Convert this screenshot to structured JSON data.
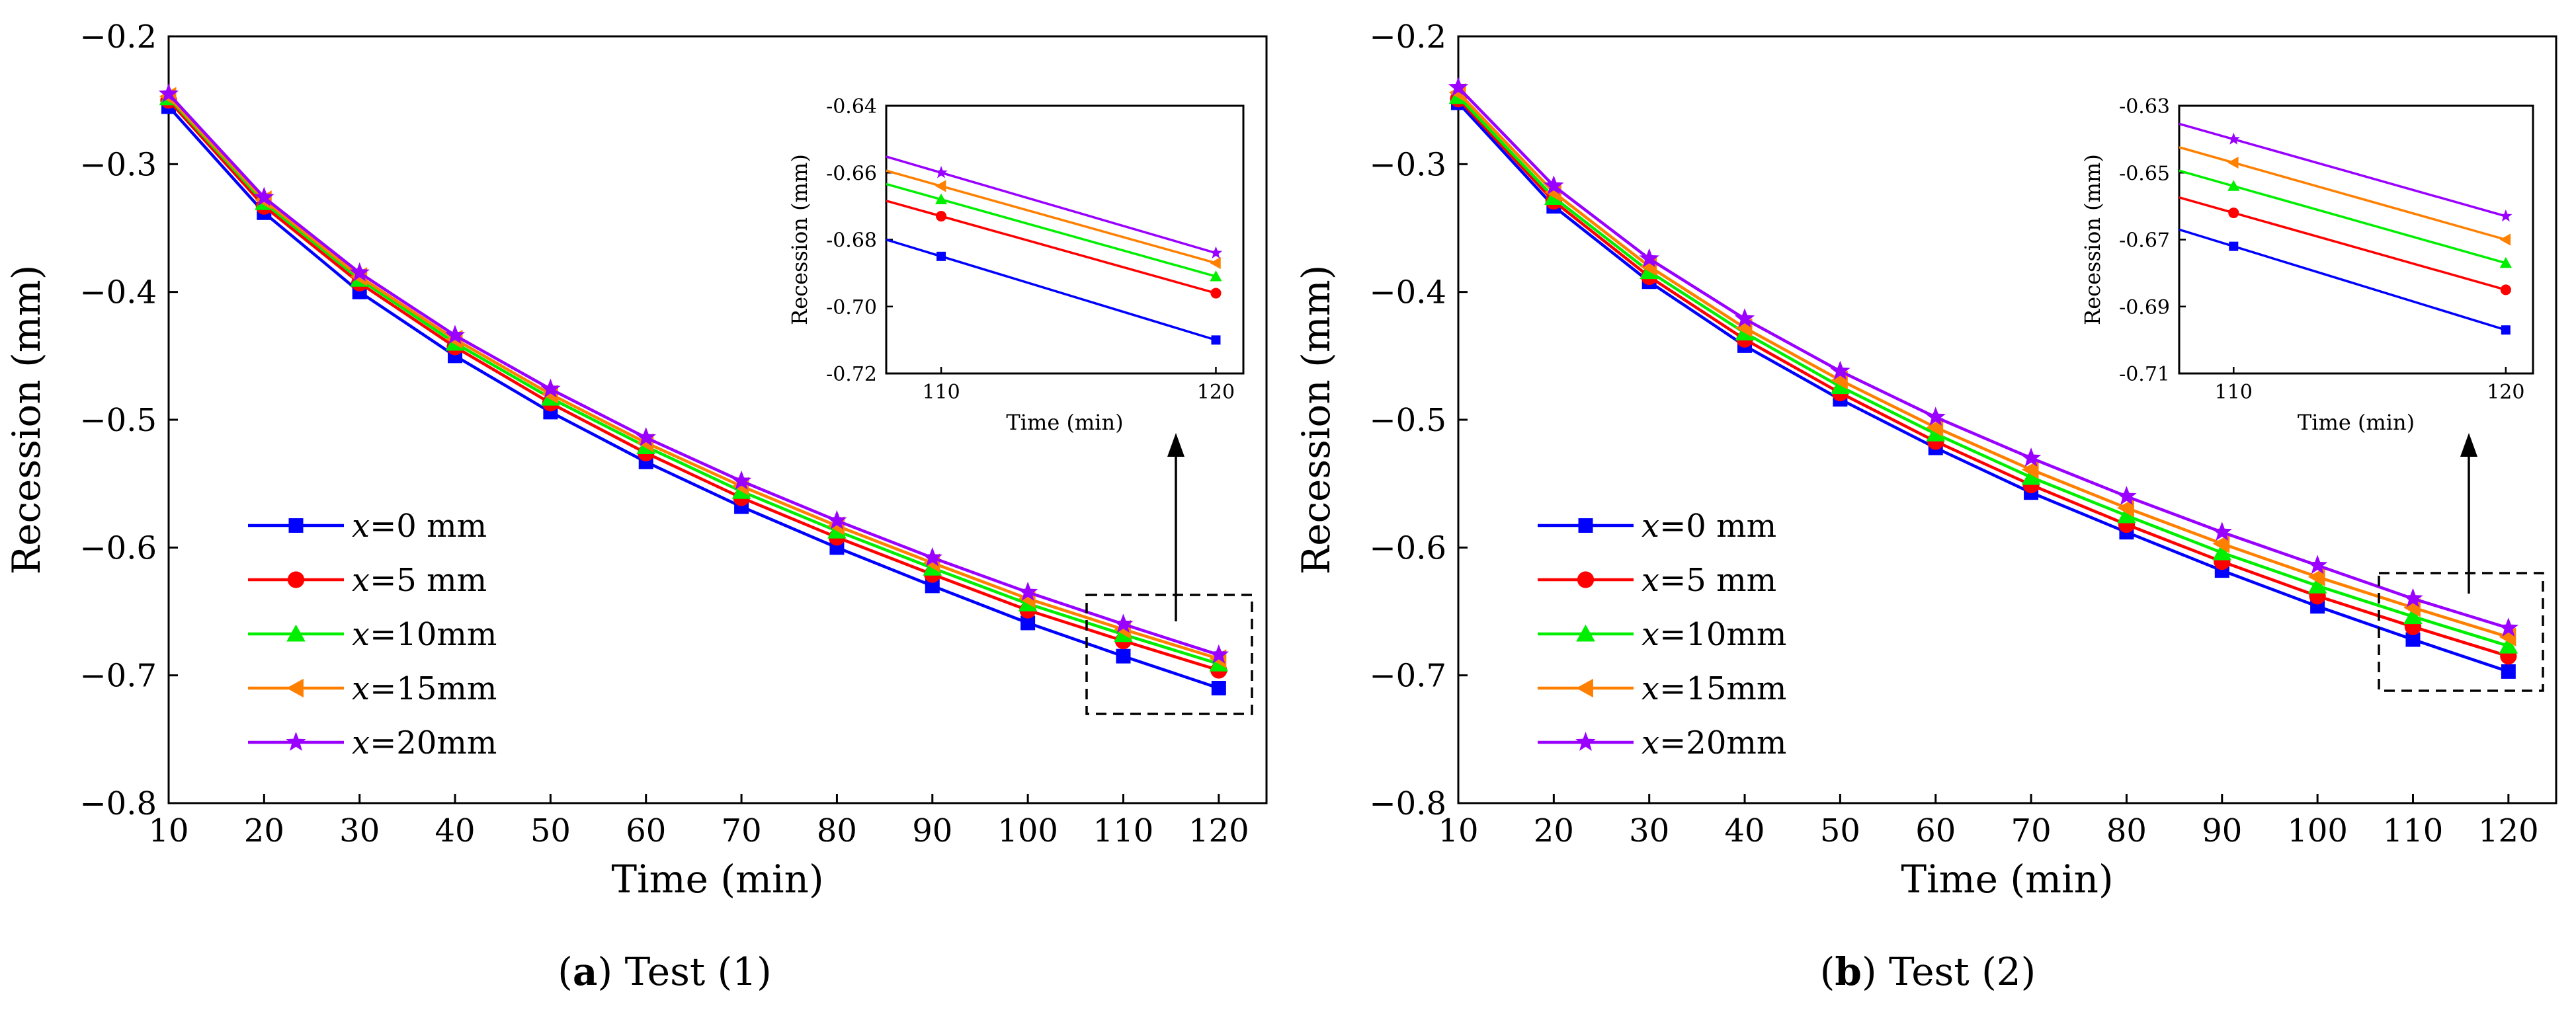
{
  "chart_data": [
    {
      "type": "line",
      "panel": "a",
      "caption_label": "a",
      "caption_text": "Test (1)",
      "title": "",
      "xlabel": "Time (min)",
      "ylabel": "Recession (mm)",
      "xlim": [
        10,
        125
      ],
      "ylim": [
        -0.8,
        -0.2
      ],
      "xticks": [
        "10",
        "20",
        "30",
        "40",
        "50",
        "60",
        "70",
        "80",
        "90",
        "100",
        "110",
        "120"
      ],
      "yticks": [
        "−0.2",
        "−0.3",
        "−0.4",
        "−0.5",
        "−0.6",
        "−0.7",
        "−0.8"
      ],
      "x": [
        10,
        20,
        30,
        40,
        50,
        60,
        70,
        80,
        90,
        100,
        110,
        120
      ],
      "legend_position": "lower-left",
      "series": [
        {
          "name_var": "x",
          "name_rest": "=0 mm",
          "color": "#0000ff",
          "marker": "square",
          "values": [
            -0.255,
            -0.338,
            -0.4,
            -0.45,
            -0.494,
            -0.533,
            -0.568,
            -0.6,
            -0.63,
            -0.659,
            -0.685,
            -0.71
          ]
        },
        {
          "name_var": "x",
          "name_rest": "=5 mm",
          "color": "#ff0000",
          "marker": "circle",
          "values": [
            -0.25,
            -0.333,
            -0.393,
            -0.443,
            -0.487,
            -0.526,
            -0.561,
            -0.592,
            -0.621,
            -0.649,
            -0.673,
            -0.696
          ]
        },
        {
          "name_var": "x",
          "name_rest": "=10mm",
          "color": "#00ee00",
          "marker": "triangle",
          "values": [
            -0.248,
            -0.33,
            -0.39,
            -0.44,
            -0.483,
            -0.521,
            -0.556,
            -0.587,
            -0.616,
            -0.644,
            -0.668,
            -0.691
          ]
        },
        {
          "name_var": "x",
          "name_rest": "=15mm",
          "color": "#ff8000",
          "marker": "triangle-left",
          "values": [
            -0.247,
            -0.328,
            -0.388,
            -0.437,
            -0.48,
            -0.518,
            -0.552,
            -0.583,
            -0.612,
            -0.64,
            -0.664,
            -0.687
          ]
        },
        {
          "name_var": "x",
          "name_rest": "=20mm",
          "color": "#9900ff",
          "marker": "star",
          "values": [
            -0.245,
            -0.326,
            -0.385,
            -0.434,
            -0.476,
            -0.514,
            -0.548,
            -0.579,
            -0.608,
            -0.635,
            -0.66,
            -0.684
          ]
        }
      ],
      "inset": {
        "xlabel": "Time (min)",
        "ylabel": "Recession (mm)",
        "xlim": [
          108,
          121
        ],
        "ylim": [
          -0.72,
          -0.64
        ],
        "xticks": [
          "110",
          "120"
        ],
        "yticks": [
          "-0.64",
          "-0.66",
          "-0.68",
          "-0.70",
          "-0.72"
        ],
        "x": [
          110,
          120
        ]
      }
    },
    {
      "type": "line",
      "panel": "b",
      "caption_label": "b",
      "caption_text": "Test (2)",
      "title": "",
      "xlabel": "Time (min)",
      "ylabel": "Recession (mm)",
      "xlim": [
        10,
        125
      ],
      "ylim": [
        -0.8,
        -0.2
      ],
      "xticks": [
        "10",
        "20",
        "30",
        "40",
        "50",
        "60",
        "70",
        "80",
        "90",
        "100",
        "110",
        "120"
      ],
      "yticks": [
        "−0.2",
        "−0.3",
        "−0.4",
        "−0.5",
        "−0.6",
        "−0.7",
        "−0.8"
      ],
      "x": [
        10,
        20,
        30,
        40,
        50,
        60,
        70,
        80,
        90,
        100,
        110,
        120
      ],
      "legend_position": "lower-left",
      "series": [
        {
          "name_var": "x",
          "name_rest": "=0 mm",
          "color": "#0000ff",
          "marker": "square",
          "values": [
            -0.252,
            -0.333,
            -0.392,
            -0.442,
            -0.484,
            -0.522,
            -0.557,
            -0.588,
            -0.618,
            -0.646,
            -0.672,
            -0.697
          ]
        },
        {
          "name_var": "x",
          "name_rest": "=5 mm",
          "color": "#ff0000",
          "marker": "circle",
          "values": [
            -0.249,
            -0.329,
            -0.388,
            -0.437,
            -0.479,
            -0.517,
            -0.551,
            -0.582,
            -0.611,
            -0.638,
            -0.662,
            -0.685
          ]
        },
        {
          "name_var": "x",
          "name_rest": "=10mm",
          "color": "#00ee00",
          "marker": "triangle",
          "values": [
            -0.247,
            -0.326,
            -0.384,
            -0.432,
            -0.474,
            -0.511,
            -0.545,
            -0.575,
            -0.604,
            -0.63,
            -0.654,
            -0.677
          ]
        },
        {
          "name_var": "x",
          "name_rest": "=15mm",
          "color": "#ff8000",
          "marker": "triangle-left",
          "values": [
            -0.244,
            -0.322,
            -0.38,
            -0.428,
            -0.469,
            -0.506,
            -0.539,
            -0.569,
            -0.597,
            -0.623,
            -0.647,
            -0.67
          ]
        },
        {
          "name_var": "x",
          "name_rest": "=20mm",
          "color": "#9900ff",
          "marker": "star",
          "values": [
            -0.24,
            -0.317,
            -0.374,
            -0.421,
            -0.462,
            -0.498,
            -0.53,
            -0.56,
            -0.588,
            -0.614,
            -0.64,
            -0.663
          ]
        }
      ],
      "inset": {
        "xlabel": "Time (min)",
        "ylabel": "Recession (mm)",
        "xlim": [
          108,
          121
        ],
        "ylim": [
          -0.71,
          -0.63
        ],
        "xticks": [
          "110",
          "120"
        ],
        "yticks": [
          "-0.63",
          "-0.65",
          "-0.67",
          "-0.69",
          "-0.71"
        ],
        "x": [
          110,
          120
        ]
      }
    }
  ]
}
